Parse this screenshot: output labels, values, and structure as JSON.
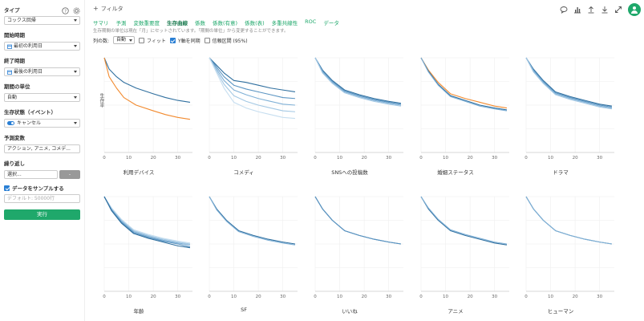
{
  "sidebar": {
    "type_label": "タイプ",
    "type_value": "コックス回帰",
    "start_label": "開始時期",
    "start_value": "最初の利用日",
    "end_label": "終了時期",
    "end_value": "最後の利用日",
    "unit_label": "期間の単位",
    "unit_value": "自動",
    "status_label": "生存状態（イベント）",
    "status_value": "キャンセル",
    "predictor_label": "予測変数",
    "predictor_value": "アクション, アニメ, コメデ...",
    "repeat_label": "繰り返し",
    "repeat_placeholder": "選択...",
    "repeat_button": "-",
    "sample_label": "データをサンプルする",
    "sample_placeholder": "デフォルト: 50000行",
    "run_button": "実行"
  },
  "header": {
    "filter_label": "フィルタ",
    "filter_plus": "+"
  },
  "tabs": [
    {
      "label": "サマリ",
      "active": false
    },
    {
      "label": "予測",
      "active": false
    },
    {
      "label": "変数重要度",
      "active": false
    },
    {
      "label": "生存曲線",
      "active": true
    },
    {
      "label": "係数",
      "active": false
    },
    {
      "label": "係数(有意)",
      "active": false
    },
    {
      "label": "係数(表)",
      "active": false
    },
    {
      "label": "多重共線性",
      "active": false
    },
    {
      "label": "ROC",
      "active": false
    },
    {
      "label": "データ",
      "active": false
    }
  ],
  "notice": "生存期間の単位は現在「月」にセットされています。「期間の単位」から変更することができます。",
  "options": {
    "columns_label": "列の数:",
    "columns_value": "自動",
    "fit_label": "フィット",
    "fit_checked": false,
    "sync_y_label": "Y軸を同期",
    "sync_y_checked": true,
    "ci_label": "信頼区間 (95%)",
    "ci_checked": false
  },
  "chart_common": {
    "ylabel": "生存率",
    "x_ticks": [
      0,
      10,
      20,
      30
    ],
    "xlim": [
      0,
      36
    ],
    "ylim": [
      0,
      1
    ],
    "grid": true
  },
  "colors": {
    "accent": "#1fa86b",
    "dark_blue": "#2f6f9f",
    "orange": "#f28a2e"
  },
  "chart_data": [
    {
      "type": "line",
      "title": "利用デバイス",
      "series": [
        {
          "color": "#2f6f9f",
          "x": [
            0,
            2,
            5,
            8,
            13,
            20,
            25,
            30,
            35
          ],
          "y": [
            1.0,
            0.88,
            0.8,
            0.74,
            0.68,
            0.62,
            0.58,
            0.55,
            0.53
          ]
        },
        {
          "color": "#f28a2e",
          "x": [
            0,
            2,
            5,
            8,
            13,
            20,
            25,
            30,
            35
          ],
          "y": [
            1.0,
            0.8,
            0.68,
            0.58,
            0.5,
            0.44,
            0.4,
            0.37,
            0.35
          ]
        }
      ]
    },
    {
      "type": "line",
      "title": "コメディ",
      "series": [
        {
          "color": "#2f6f9f",
          "x": [
            0,
            3,
            6,
            10,
            15,
            20,
            25,
            30,
            35
          ],
          "y": [
            1.0,
            0.92,
            0.84,
            0.76,
            0.74,
            0.71,
            0.68,
            0.66,
            0.64
          ]
        },
        {
          "color": "#5a94c2",
          "x": [
            0,
            3,
            6,
            10,
            15,
            20,
            25,
            30,
            35
          ],
          "y": [
            1.0,
            0.9,
            0.8,
            0.71,
            0.67,
            0.64,
            0.61,
            0.58,
            0.57
          ]
        },
        {
          "color": "#7fb0d6",
          "x": [
            0,
            3,
            6,
            10,
            15,
            20,
            25,
            30,
            35
          ],
          "y": [
            1.0,
            0.88,
            0.76,
            0.66,
            0.61,
            0.57,
            0.54,
            0.51,
            0.5
          ]
        },
        {
          "color": "#a3c8e4",
          "x": [
            0,
            3,
            6,
            10,
            15,
            20,
            25,
            30,
            35
          ],
          "y": [
            1.0,
            0.86,
            0.72,
            0.6,
            0.54,
            0.5,
            0.47,
            0.44,
            0.43
          ]
        },
        {
          "color": "#c6def0",
          "x": [
            0,
            3,
            6,
            10,
            15,
            20,
            25,
            30,
            35
          ],
          "y": [
            1.0,
            0.84,
            0.68,
            0.53,
            0.47,
            0.43,
            0.4,
            0.37,
            0.36
          ]
        }
      ]
    },
    {
      "type": "line",
      "title": "SNSへの投稿数",
      "series": [
        {
          "color": "#2f6f9f",
          "x": [
            0,
            3,
            7,
            12,
            18,
            24,
            30,
            35
          ],
          "y": [
            1.0,
            0.87,
            0.76,
            0.66,
            0.61,
            0.57,
            0.54,
            0.52
          ]
        },
        {
          "color": "#5a94c2",
          "x": [
            0,
            3,
            7,
            12,
            18,
            24,
            30,
            35
          ],
          "y": [
            1.0,
            0.86,
            0.75,
            0.65,
            0.6,
            0.56,
            0.53,
            0.51
          ]
        },
        {
          "color": "#7fb0d6",
          "x": [
            0,
            3,
            7,
            12,
            18,
            24,
            30,
            35
          ],
          "y": [
            1.0,
            0.85,
            0.74,
            0.64,
            0.59,
            0.55,
            0.52,
            0.5
          ]
        },
        {
          "color": "#a3c8e4",
          "x": [
            0,
            3,
            7,
            12,
            18,
            24,
            30,
            35
          ],
          "y": [
            1.0,
            0.84,
            0.73,
            0.63,
            0.58,
            0.54,
            0.51,
            0.49
          ]
        }
      ]
    },
    {
      "type": "line",
      "title": "婚姻ステータス",
      "series": [
        {
          "color": "#f28a2e",
          "x": [
            0,
            3,
            7,
            12,
            18,
            24,
            30,
            35
          ],
          "y": [
            1.0,
            0.87,
            0.74,
            0.62,
            0.57,
            0.53,
            0.49,
            0.47
          ]
        },
        {
          "color": "#2f6f9f",
          "x": [
            0,
            3,
            7,
            12,
            18,
            24,
            30,
            35
          ],
          "y": [
            1.0,
            0.86,
            0.72,
            0.6,
            0.55,
            0.5,
            0.47,
            0.45
          ]
        },
        {
          "color": "#7fb0d6",
          "x": [
            0,
            3,
            7,
            12,
            18,
            24,
            30,
            35
          ],
          "y": [
            1.0,
            0.85,
            0.71,
            0.59,
            0.54,
            0.49,
            0.46,
            0.44
          ]
        }
      ]
    },
    {
      "type": "line",
      "title": "ドラマ",
      "series": [
        {
          "color": "#2f6f9f",
          "x": [
            0,
            3,
            7,
            12,
            18,
            24,
            30,
            35
          ],
          "y": [
            1.0,
            0.88,
            0.76,
            0.64,
            0.59,
            0.55,
            0.51,
            0.49
          ]
        },
        {
          "color": "#5a94c2",
          "x": [
            0,
            3,
            7,
            12,
            18,
            24,
            30,
            35
          ],
          "y": [
            1.0,
            0.87,
            0.75,
            0.63,
            0.58,
            0.54,
            0.5,
            0.48
          ]
        },
        {
          "color": "#7fb0d6",
          "x": [
            0,
            3,
            7,
            12,
            18,
            24,
            30,
            35
          ],
          "y": [
            1.0,
            0.86,
            0.74,
            0.62,
            0.57,
            0.53,
            0.49,
            0.47
          ]
        },
        {
          "color": "#a3c8e4",
          "x": [
            0,
            3,
            7,
            12,
            18,
            24,
            30,
            35
          ],
          "y": [
            1.0,
            0.85,
            0.73,
            0.61,
            0.56,
            0.52,
            0.48,
            0.46
          ]
        }
      ]
    },
    {
      "type": "line",
      "title": "年齢",
      "series": [
        {
          "color": "#c6def0",
          "x": [
            0,
            3,
            7,
            12,
            18,
            24,
            30,
            35
          ],
          "y": [
            1.0,
            0.88,
            0.76,
            0.65,
            0.6,
            0.56,
            0.53,
            0.51
          ]
        },
        {
          "color": "#a3c8e4",
          "x": [
            0,
            3,
            7,
            12,
            18,
            24,
            30,
            35
          ],
          "y": [
            1.0,
            0.87,
            0.75,
            0.64,
            0.59,
            0.55,
            0.52,
            0.5
          ]
        },
        {
          "color": "#7fb0d6",
          "x": [
            0,
            3,
            7,
            12,
            18,
            24,
            30,
            35
          ],
          "y": [
            1.0,
            0.86,
            0.74,
            0.63,
            0.58,
            0.54,
            0.51,
            0.49
          ]
        },
        {
          "color": "#5a94c2",
          "x": [
            0,
            3,
            7,
            12,
            18,
            24,
            30,
            35
          ],
          "y": [
            1.0,
            0.86,
            0.73,
            0.62,
            0.57,
            0.53,
            0.5,
            0.47
          ]
        },
        {
          "color": "#2f6f9f",
          "x": [
            0,
            3,
            7,
            12,
            18,
            24,
            30,
            35
          ],
          "y": [
            1.0,
            0.85,
            0.72,
            0.61,
            0.56,
            0.52,
            0.48,
            0.46
          ]
        }
      ]
    },
    {
      "type": "line",
      "title": "SF",
      "series": [
        {
          "color": "#2f6f9f",
          "x": [
            0,
            3,
            7,
            12,
            18,
            24,
            30,
            35
          ],
          "y": [
            1.0,
            0.87,
            0.75,
            0.64,
            0.59,
            0.55,
            0.52,
            0.5
          ]
        },
        {
          "color": "#7fb0d6",
          "x": [
            0,
            3,
            7,
            12,
            18,
            24,
            30,
            35
          ],
          "y": [
            1.0,
            0.86,
            0.74,
            0.63,
            0.58,
            0.54,
            0.51,
            0.49
          ]
        }
      ]
    },
    {
      "type": "line",
      "title": "いいね",
      "series": [
        {
          "color": "#2f6f9f",
          "x": [
            0,
            3,
            7,
            12,
            18,
            24,
            30,
            35
          ],
          "y": [
            1.0,
            0.87,
            0.75,
            0.64,
            0.59,
            0.55,
            0.52,
            0.5
          ]
        },
        {
          "color": "#5a94c2",
          "x": [
            0,
            3,
            7,
            12,
            18,
            24,
            30,
            35
          ],
          "y": [
            1.0,
            0.87,
            0.75,
            0.64,
            0.59,
            0.55,
            0.52,
            0.5
          ]
        }
      ]
    },
    {
      "type": "line",
      "title": "アニメ",
      "series": [
        {
          "color": "#2f6f9f",
          "x": [
            0,
            3,
            7,
            12,
            18,
            24,
            30,
            35
          ],
          "y": [
            1.0,
            0.87,
            0.75,
            0.64,
            0.59,
            0.55,
            0.51,
            0.49
          ]
        },
        {
          "color": "#7fb0d6",
          "x": [
            0,
            3,
            7,
            12,
            18,
            24,
            30,
            35
          ],
          "y": [
            1.0,
            0.88,
            0.76,
            0.65,
            0.6,
            0.56,
            0.52,
            0.5
          ]
        }
      ]
    },
    {
      "type": "line",
      "title": "ヒューマン",
      "series": [
        {
          "color": "#2f6f9f",
          "x": [
            0,
            3,
            7,
            12,
            18,
            24,
            30,
            35
          ],
          "y": [
            1.0,
            0.87,
            0.75,
            0.64,
            0.59,
            0.55,
            0.52,
            0.5
          ]
        },
        {
          "color": "#7fb0d6",
          "x": [
            0,
            3,
            7,
            12,
            18,
            24,
            30,
            35
          ],
          "y": [
            1.0,
            0.87,
            0.75,
            0.64,
            0.59,
            0.55,
            0.52,
            0.5
          ]
        }
      ]
    }
  ]
}
